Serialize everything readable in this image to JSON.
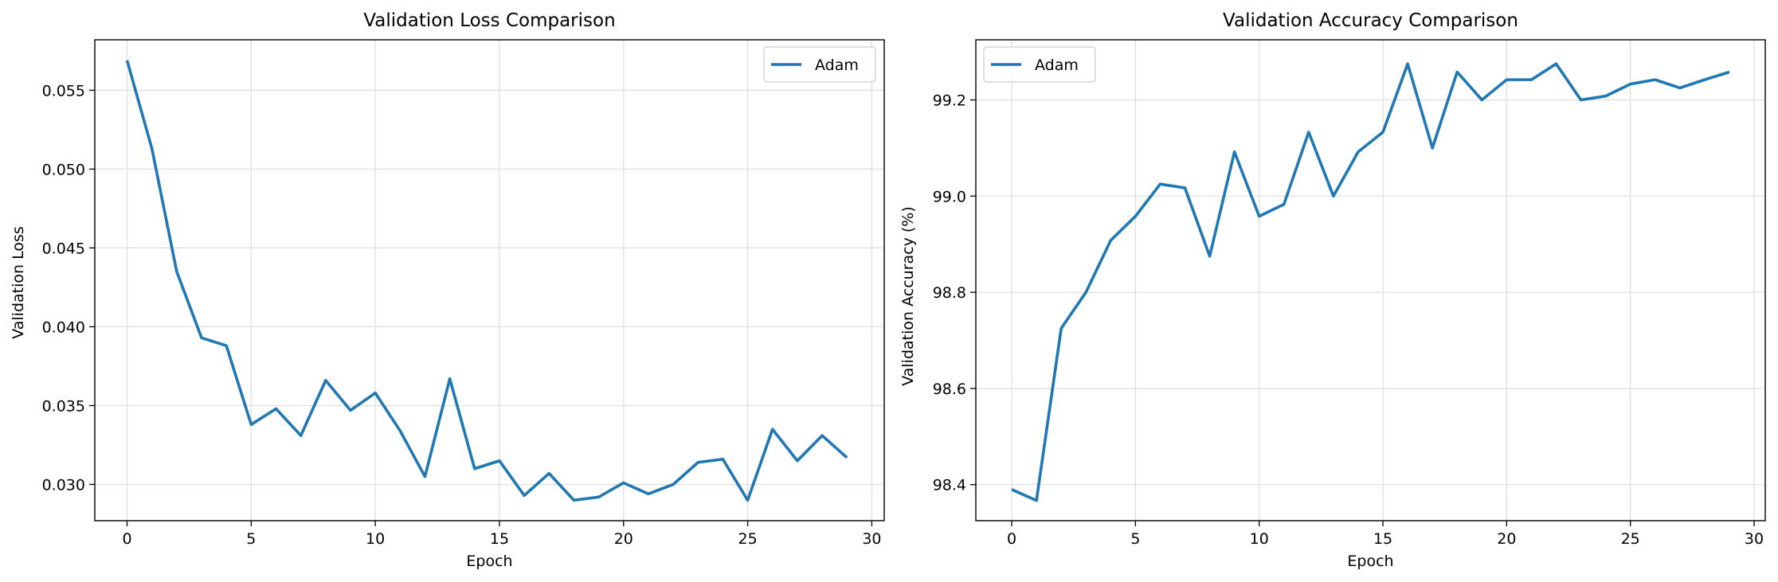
{
  "chart_data": [
    {
      "type": "line",
      "title": "Validation Loss Comparison",
      "xlabel": "Epoch",
      "ylabel": "Validation Loss",
      "xlim": [
        -1.3,
        30.5
      ],
      "ylim": [
        0.0277,
        0.0582
      ],
      "xticks": [
        0,
        5,
        10,
        15,
        20,
        25,
        30
      ],
      "xtick_labels": [
        "0",
        "5",
        "10",
        "15",
        "20",
        "25",
        "30"
      ],
      "yticks": [
        0.03,
        0.035,
        0.04,
        0.045,
        0.05,
        0.055
      ],
      "ytick_labels": [
        "0.030",
        "0.035",
        "0.040",
        "0.045",
        "0.050",
        "0.055"
      ],
      "grid": true,
      "legend_position": "top-right",
      "x": [
        0,
        1,
        2,
        3,
        4,
        5,
        6,
        7,
        8,
        9,
        10,
        11,
        12,
        13,
        14,
        15,
        16,
        17,
        18,
        19,
        20,
        21,
        22,
        23,
        24,
        25,
        26,
        27,
        28,
        29
      ],
      "series": [
        {
          "name": "Adam",
          "color": "#1f77b4",
          "values": [
            0.0569,
            0.0513,
            0.0435,
            0.0393,
            0.0388,
            0.0338,
            0.0348,
            0.0331,
            0.0366,
            0.0347,
            0.0358,
            0.0334,
            0.0305,
            0.0367,
            0.031,
            0.0315,
            0.0293,
            0.0307,
            0.029,
            0.0292,
            0.0301,
            0.0294,
            0.03,
            0.0314,
            0.0316,
            0.029,
            0.0335,
            0.0315,
            0.0331,
            0.0317
          ]
        }
      ]
    },
    {
      "type": "line",
      "title": "Validation Accuracy Comparison",
      "xlabel": "Epoch",
      "ylabel": "Validation Accuracy (%)",
      "xlim": [
        -1.45,
        30.45
      ],
      "ylim": [
        98.325,
        99.325
      ],
      "xticks": [
        0,
        5,
        10,
        15,
        20,
        25,
        30
      ],
      "xtick_labels": [
        "0",
        "5",
        "10",
        "15",
        "20",
        "25",
        "30"
      ],
      "yticks": [
        98.4,
        98.6,
        98.8,
        99.0,
        99.2
      ],
      "ytick_labels": [
        "98.4",
        "98.6",
        "98.8",
        "99.0",
        "99.2"
      ],
      "grid": true,
      "legend_position": "top-left",
      "x": [
        0,
        1,
        2,
        3,
        4,
        5,
        6,
        7,
        8,
        9,
        10,
        11,
        12,
        13,
        14,
        15,
        16,
        17,
        18,
        19,
        20,
        21,
        22,
        23,
        24,
        25,
        26,
        27,
        28,
        29
      ],
      "series": [
        {
          "name": "Adam",
          "color": "#1f77b4",
          "values": [
            98.39,
            98.367,
            98.725,
            98.8,
            98.908,
            98.958,
            99.025,
            99.017,
            98.875,
            99.092,
            98.958,
            98.983,
            99.133,
            99.0,
            99.092,
            99.133,
            99.275,
            99.1,
            99.258,
            99.2,
            99.242,
            99.242,
            99.275,
            99.2,
            99.208,
            99.233,
            99.242,
            99.225,
            99.242,
            99.258
          ]
        }
      ]
    }
  ]
}
